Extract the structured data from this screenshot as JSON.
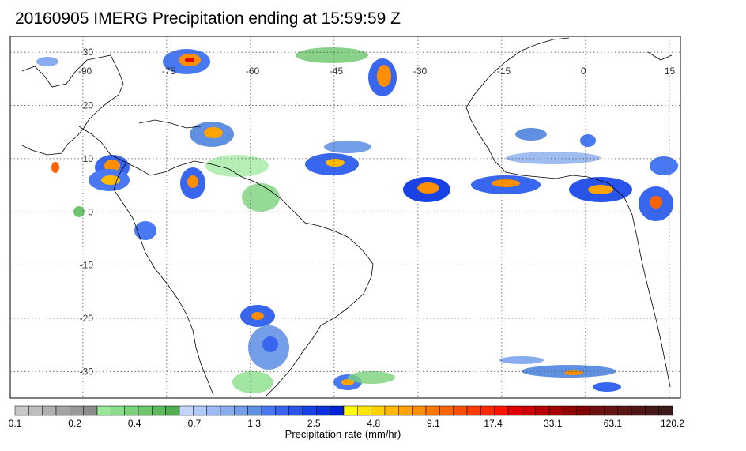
{
  "title": "20160905 IMERG Precipitation ending at 15:59:59 Z",
  "map": {
    "lon_labels": [
      {
        "value": -90,
        "text": "-90"
      },
      {
        "value": -75,
        "text": "-75"
      },
      {
        "value": -60,
        "text": "-60"
      },
      {
        "value": -45,
        "text": "-45"
      },
      {
        "value": -30,
        "text": "-30"
      },
      {
        "value": -15,
        "text": "-15"
      },
      {
        "value": 0,
        "text": "0"
      },
      {
        "value": 15,
        "text": "15"
      }
    ],
    "lat_labels": [
      {
        "value": 30,
        "text": "30"
      },
      {
        "value": 20,
        "text": "20"
      },
      {
        "value": 10,
        "text": "10"
      },
      {
        "value": 0,
        "text": "0"
      },
      {
        "value": -10,
        "text": "-10"
      },
      {
        "value": -20,
        "text": "-20"
      },
      {
        "value": -30,
        "text": "-30"
      }
    ],
    "lon_range": [
      -103,
      17
    ],
    "lat_range": [
      -35,
      33
    ],
    "gridlines": true
  },
  "colorbar": {
    "label": "Precipitation rate (mm/hr)",
    "tick_labels": [
      "0.1",
      "0.2",
      "0.4",
      "0.7",
      "1.3",
      "2.5",
      "4.8",
      "9.1",
      "17.4",
      "33.1",
      "63.1",
      "120.2"
    ],
    "colors": [
      "#c8c8c8",
      "#bcbcbc",
      "#b0b0b0",
      "#a4a4a4",
      "#989898",
      "#8c8c8c",
      "#96e896",
      "#88de88",
      "#7ad27a",
      "#6cc66c",
      "#5eba5e",
      "#50ae50",
      "#c4d4ff",
      "#b0c8fa",
      "#9cbaf4",
      "#88acee",
      "#749ee8",
      "#6090e2",
      "#4878f2",
      "#3866ee",
      "#2854ea",
      "#1842e6",
      "#0c30e0",
      "#0020d8",
      "#ffff00",
      "#ffe600",
      "#ffd000",
      "#ffba00",
      "#ffa400",
      "#ff8e00",
      "#ff7800",
      "#ff6400",
      "#ff5000",
      "#ff3c00",
      "#ff2800",
      "#ff1400",
      "#e00000",
      "#cc0000",
      "#b80000",
      "#a40000",
      "#900000",
      "#7c0000",
      "#6e1010",
      "#641212",
      "#5a1414",
      "#501616",
      "#461818",
      "#3c1a1a"
    ]
  }
}
